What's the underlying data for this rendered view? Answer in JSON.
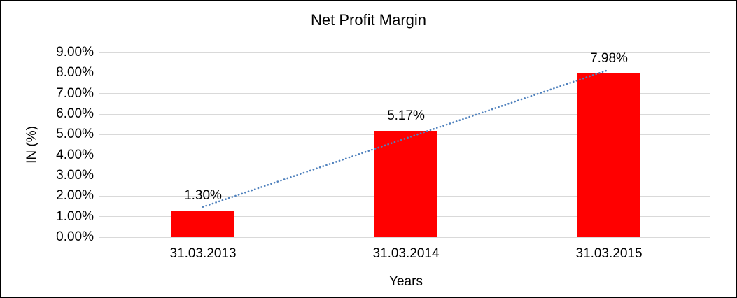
{
  "chart_data": {
    "type": "bar",
    "title": "Net Profit Margin",
    "categories": [
      "31.03.2013",
      "31.03.2014",
      "31.03.2015"
    ],
    "values": [
      1.3,
      5.17,
      7.98
    ],
    "data_labels": [
      "1.30%",
      "5.17%",
      "7.98%"
    ],
    "xlabel": "Years",
    "ylabel": "IN (%)",
    "ylim": [
      0,
      9
    ],
    "ytick_step": 1,
    "ytick_labels": [
      "0.00%",
      "1.00%",
      "2.00%",
      "3.00%",
      "4.00%",
      "5.00%",
      "6.00%",
      "7.00%",
      "8.00%",
      "9.00%"
    ],
    "grid": true,
    "legend": "none",
    "bar_color": "#FF0000",
    "gridline_color": "#D9D9D9",
    "text_color": "#000000",
    "trendline": {
      "type": "linear",
      "style": "dotted",
      "color": "#4F81BD"
    }
  }
}
